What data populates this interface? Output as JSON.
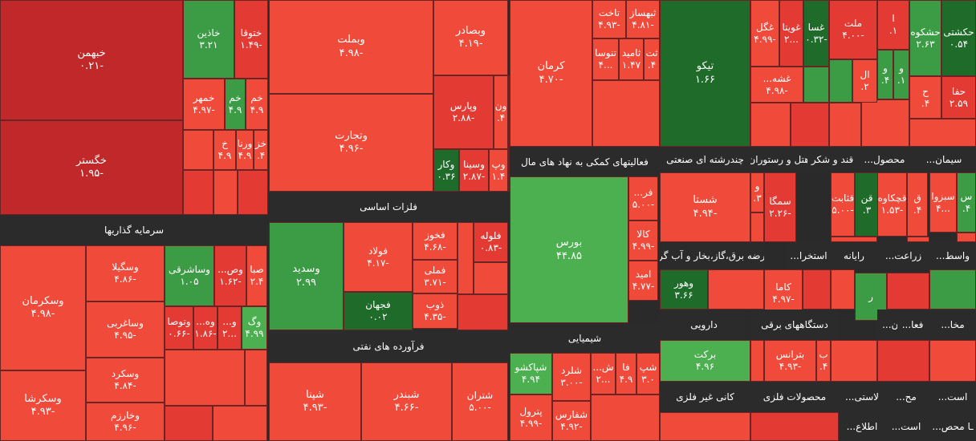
{
  "colors": {
    "strong_red": "#c0282a",
    "red": "#f04a3b",
    "light_red": "#e33b34",
    "green": "#3c9b45",
    "dark_green": "#1f6b2a",
    "light_green": "#4caf50",
    "header_bg": "#2b2b2b"
  },
  "chart_data": {
    "type": "treemap",
    "sectors": [
      {
        "name": "سرمایه گذاریها"
      },
      {
        "name": "فلزات اساسی"
      },
      {
        "name": "فرآورده های نفتی"
      },
      {
        "name": "فعالیتهای کمکی به نهاد های مال"
      },
      {
        "name": "شیمیایی"
      },
      {
        "name": "چندرشته ای صنعتی"
      },
      {
        "name": "هتل و رستوران"
      },
      {
        "name": "قند و شکر"
      },
      {
        "name": "محصول..."
      },
      {
        "name": "سیمان..."
      },
      {
        "name": "عرضه برق،گاز،بخار و آب گرم"
      },
      {
        "name": "استخرا..."
      },
      {
        "name": "رایانه"
      },
      {
        "name": "زراعت..."
      },
      {
        "name": "واسط..."
      },
      {
        "name": "دارویی"
      },
      {
        "name": "دستگاههای برقی"
      },
      {
        "name": "پیمان..."
      },
      {
        "name": "فعا..."
      },
      {
        "name": "مخا..."
      },
      {
        "name": "کانی غیر فلزی"
      },
      {
        "name": "محصولات فلزی"
      },
      {
        "name": "لاستی..."
      },
      {
        "name": "مح..."
      },
      {
        "name": "است..."
      },
      {
        "name": "اطلاع..."
      },
      {
        "name": "ـا محص..."
      },
      {
        "name": "است..."
      }
    ],
    "tiles": [
      {
        "name": "خبهمن",
        "value": "-۰.۲۱",
        "color": "strong_red"
      },
      {
        "name": "خگستر",
        "value": "-۱.۹۵",
        "color": "strong_red"
      },
      {
        "name": "خاذین",
        "value": "۳.۲۱",
        "color": "green"
      },
      {
        "name": "ختوقا",
        "value": "-۱.۴۹",
        "color": "light_red"
      },
      {
        "name": "خمهر",
        "value": "-۴.۹۷",
        "color": "red"
      },
      {
        "name": "خم",
        "value": "۴.۹",
        "color": "green"
      },
      {
        "name": "خم",
        "value": "۴.۹",
        "color": "red"
      },
      {
        "name": "خ",
        "value": "۴.۹",
        "color": "red"
      },
      {
        "name": "ورنا",
        "value": "۴.۹",
        "color": "red"
      },
      {
        "name": "خز",
        "value": "۴.",
        "color": "red"
      },
      {
        "name": "وبملت",
        "value": "-۴.۹۸",
        "color": "red"
      },
      {
        "name": "وتجارت",
        "value": "-۴.۹۶",
        "color": "red"
      },
      {
        "name": "وبصادر",
        "value": "-۴.۱۹",
        "color": "red"
      },
      {
        "name": "وپارس",
        "value": "-۲.۸۸",
        "color": "light_red"
      },
      {
        "name": "ون",
        "value": "۴.",
        "color": "red"
      },
      {
        "name": "وکار",
        "value": "۰.۳۶",
        "color": "dark_green"
      },
      {
        "name": "وسینا",
        "value": "-۲.۸۷",
        "color": "light_red"
      },
      {
        "name": "وپ",
        "value": "۱.۴",
        "color": "red"
      },
      {
        "name": "کرمان",
        "value": "-۴.۷۰",
        "color": "red"
      },
      {
        "name": "تاخت",
        "value": "-۴.۹۳",
        "color": "red"
      },
      {
        "name": "ثبهساز",
        "value": "-۴.۸۱",
        "color": "red"
      },
      {
        "name": "تنوسا",
        "value": "...۴",
        "color": "red"
      },
      {
        "name": "ثامید",
        "value": "۱.۴۷",
        "color": "red"
      },
      {
        "name": "ثت",
        "value": "۴.",
        "color": "red"
      },
      {
        "name": "تیکو",
        "value": "۱.۶۶",
        "color": "dark_green"
      },
      {
        "name": "غگل",
        "value": "-۴.۹۹",
        "color": "red"
      },
      {
        "name": "غویتا",
        "value": "...۲",
        "color": "light_red"
      },
      {
        "name": "غسا",
        "value": "-۰.۳۲",
        "color": "dark_green"
      },
      {
        "name": "غشه...",
        "value": "-۴.۹۸",
        "color": "red"
      },
      {
        "name": "ملت",
        "value": "-۴.۰۰",
        "color": "light_red"
      },
      {
        "name": "ا",
        "value": "۱.",
        "color": "light_red"
      },
      {
        "name": "ال",
        "value": "۲.",
        "color": "red"
      },
      {
        "name": "و",
        "value": "۴.",
        "color": "green"
      },
      {
        "name": "و",
        "value": "۱.",
        "color": "green"
      },
      {
        "name": "حشکوه",
        "value": "۲.۶۳",
        "color": "green"
      },
      {
        "name": "حکشتی",
        "value": "۰.۵۴",
        "color": "dark_green"
      },
      {
        "name": "حفا",
        "value": "۲.۵۹",
        "color": "light_red"
      },
      {
        "name": "ح",
        "value": "۴.",
        "color": "red"
      },
      {
        "name": "وسکرمان",
        "value": "-۴.۹۸",
        "color": "red"
      },
      {
        "name": "وسکرشا",
        "value": "-۴.۹۳",
        "color": "red"
      },
      {
        "name": "وسگیلا",
        "value": "-۴.۸۶",
        "color": "red"
      },
      {
        "name": "وساغربی",
        "value": "-۴.۹۵",
        "color": "red"
      },
      {
        "name": "وسکرد",
        "value": "-۴.۸۴",
        "color": "red"
      },
      {
        "name": "وخارزم",
        "value": "-۴.۹۶",
        "color": "red"
      },
      {
        "name": "وساشرقی",
        "value": "۱.۰۵",
        "color": "green"
      },
      {
        "name": "وص...",
        "value": "-۱.۶۲",
        "color": "light_red"
      },
      {
        "name": "صبا",
        "value": "۲.۴",
        "color": "red"
      },
      {
        "name": "وتوصا",
        "value": "-۰.۶۶",
        "color": "light_red"
      },
      {
        "name": "وه...",
        "value": "-۱.۸۶",
        "color": "light_red"
      },
      {
        "name": "و...",
        "value": "...۲",
        "color": "light_red"
      },
      {
        "name": "وگ",
        "value": "۴.۹۹",
        "color": "light_green"
      },
      {
        "name": "وسدید",
        "value": "۲.۹۹",
        "color": "green"
      },
      {
        "name": "فولاد",
        "value": "-۴.۱۷",
        "color": "red"
      },
      {
        "name": "فخوز",
        "value": "-۴.۶۸",
        "color": "red"
      },
      {
        "name": "فملی",
        "value": "-۳.۷۱",
        "color": "red"
      },
      {
        "name": "فلوله",
        "value": "-۰.۸۳",
        "color": "light_red"
      },
      {
        "name": "فجهان",
        "value": "۰.۰۲",
        "color": "dark_green"
      },
      {
        "name": "ذوب",
        "value": "-۴.۳۵",
        "color": "red"
      },
      {
        "name": "بورس",
        "value": "۴۴.۸۵",
        "color": "light_green"
      },
      {
        "name": "فر...",
        "value": "-۵.۰۰",
        "color": "red"
      },
      {
        "name": "کالا",
        "value": "-۴.۹۹",
        "color": "red"
      },
      {
        "name": "امید",
        "value": "-۴.۷۷",
        "color": "red"
      },
      {
        "name": "شستا",
        "value": "-۴.۹۴",
        "color": "red"
      },
      {
        "name": "و",
        "value": "۳.",
        "color": "red"
      },
      {
        "name": "سمگا",
        "value": "-۲.۲۶",
        "color": "light_red"
      },
      {
        "name": "قثابت",
        "value": "-۵.۰۰",
        "color": "red"
      },
      {
        "name": "قن",
        "value": "۳.",
        "color": "dark_green"
      },
      {
        "name": "قچکاوه",
        "value": "-۱.۵۳",
        "color": "red"
      },
      {
        "name": "ق",
        "value": "۴.",
        "color": "red"
      },
      {
        "name": "سبزوا",
        "value": "...۴",
        "color": "red"
      },
      {
        "name": "س",
        "value": "۴.",
        "color": "green"
      },
      {
        "name": "شپنا",
        "value": "-۴.۹۳",
        "color": "red"
      },
      {
        "name": "شبندر",
        "value": "-۴.۶۶",
        "color": "red"
      },
      {
        "name": "شتران",
        "value": "-۵.۰۰",
        "color": "red"
      },
      {
        "name": "شپاکشو",
        "value": "۴.۹۴",
        "color": "light_green"
      },
      {
        "name": "شلرد",
        "value": "-۳.۰۰",
        "color": "red"
      },
      {
        "name": "ش...",
        "value": "...۲",
        "color": "red"
      },
      {
        "name": "فا",
        "value": "۴.۹",
        "color": "red"
      },
      {
        "name": "شپ",
        "value": "۳.۰",
        "color": "red"
      },
      {
        "name": "پترول",
        "value": "-۴.۹۹",
        "color": "red"
      },
      {
        "name": "شفارس",
        "value": "-۴.۹۲",
        "color": "red"
      },
      {
        "name": "وهور",
        "value": "۳.۶۶",
        "color": "dark_green"
      },
      {
        "name": "کاما",
        "value": "-۴.۹۷",
        "color": "red"
      },
      {
        "name": "ر",
        "value": "",
        "color": "green"
      },
      {
        "name": "برکت",
        "value": "۴.۹۶",
        "color": "light_green"
      },
      {
        "name": "بترانس",
        "value": "-۴.۹۳",
        "color": "red"
      },
      {
        "name": "ب",
        "value": "۴.",
        "color": "red"
      }
    ]
  }
}
